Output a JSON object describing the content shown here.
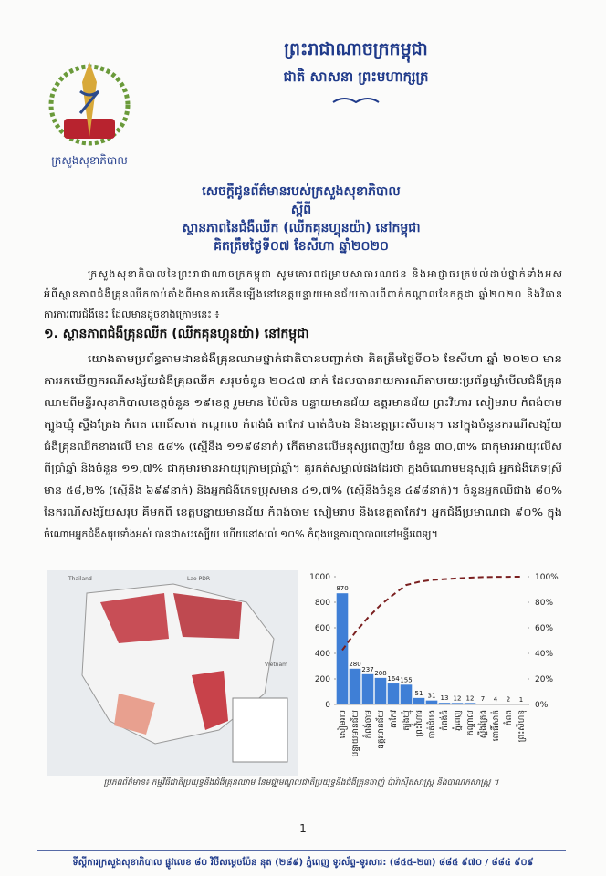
{
  "header": {
    "kingdom": "ព្រះរាជាណាចក្រកម្ពុជា",
    "motto": "ជាតិ សាសនា ព្រះមហាក្សត្រ",
    "ministry": "ក្រសួងសុខាភិបាល"
  },
  "title": {
    "line1": "សេចក្តីជូនព័ត៌មានរបស់ក្រសួងសុខាភិបាល",
    "line2": "ស្តីពី",
    "line3": "ស្ថានភាពនៃជំងឺឈីក (ឈីកគុនហ្គុនយ៉ា) នៅកម្ពុជា",
    "line4": "គិតត្រឹមថ្ងៃទី០៧ ខែសីហា ឆ្នាំ២០២០"
  },
  "intro": [
    "ក្រសួងសុខាភិបាលនៃព្រះរាជាណាចក្រកម្ពុជា សូមគោរពជម្រាបសាធារណជន និងអាជ្ញាធរគ្រប់លំដាប់ថ្នាក់ទាំងអស់",
    "អំពីស្ថានភាពជំងឺគ្រុនឈីកចាប់តាំងពីមានការកើនឡើងនៅខេត្តបន្ទាយមានជ័យកាលពីពាក់កណ្តាលខែកក្កដា ឆ្នាំ២០២០ និងវិធាន",
    "ការការពារជំងឺនេះ ដែលមានដូចខាងក្រោមនេះ ៖"
  ],
  "section": {
    "heading": "១. ស្ថានភាពជំងឺគ្រុនឈីក (ឈីកគុនហ្គុនយ៉ា) នៅកម្ពុជា",
    "lines": [
      "យោងតាមប្រព័ន្ធតាមដានជំងឺគ្រុនឈាមថ្នាក់ជាតិបានបញ្ជាក់ថា គិតត្រឹមថ្ងៃទី០៦ ខែសីហា ឆ្នាំ ២០២០ មាន",
      "ការរកឃើញករណីសង្ស័យជំងឺគ្រុនឈីក សរុបចំនួន ២០៤៧ នាក់ ដែលបានរាយការណ៍តាមរយៈប្រព័ន្ធឃ្លាំមើលជំងឺគ្រុន",
      "ឈាមពីមន្ទីរសុខាភិបាលខេត្តចំនួន ១៩ខេត្ត រួមមាន ប៉ៃលិន បន្ទាយមានជ័យ ឧត្តរមានជ័យ ព្រះវិហារ សៀមរាប កំពង់ចាម",
      "ត្បូងឃ្មុំ ស្ទឹងត្រែង កំពត ពោធិ៍សាត់ កណ្តាល កំពង់ធំ តាកែវ បាត់ដំបង និងខេត្តព្រះសីហនុ។ នៅក្នុងចំនួនករណីសង្ស័យ",
      "ជំងឺគ្រុនឈីកខាងលើ មាន ៥៨% (ស្មើនឹង ១១៩៨នាក់) កើតមានលើមនុស្សពេញវ័យ ចំនួន ៣០,៣% ជាកុមារអាយុលើស",
      "ពីប្រាំឆ្នាំ និងចំនួន ១១,៧% ជាកុមារមានអាយុក្រោមប្រាំឆ្នាំ។ គួរកត់សម្គាល់ផងដែរថា ក្នុងចំណោមមនុស្សធំ អ្នកជំងឺភេទស្រី",
      "មាន ៥៨,២% (ស្មើនឹង ៦៩៩នាក់) និងអ្នកជំងឺភេទប្រុសមាន ៤១,៧% (ស្មើនឹងចំនួន ៤៩៨នាក់)។ ចំនួនអ្នកឈឺជាង ៨០%",
      "នៃករណីសង្ស័យសរុប គឺមកពី ខេត្តបន្ទាយមានជ័យ កំពង់ចាម សៀមរាប និងខេត្តតាកែវ។ អ្នកជំងឺប្រមាណជា ៩០% ក្នុង",
      "ចំណោមអ្នកជំងឺសរុបទាំងអស់ បានជាសះស្បើយ ហើយនៅសល់ ១០% កំពុងបន្តការព្យាបាលនៅមន្ទីរពេទ្យ។"
    ]
  },
  "map": {
    "labels": [
      "Thailand",
      "Lao PDR",
      "Vietnam"
    ]
  },
  "chart_data": {
    "type": "bar",
    "categories": [
      "សៀមរាប",
      "បន្ទាយមានជ័យ",
      "កំពង់ចាម",
      "ឧត្តរមានជ័យ",
      "តាកែវ",
      "ត្បូងឃ្មុំ",
      "ព្រះវិហារ",
      "បាត់ដំបង",
      "កំពង់ធំ",
      "ភ្នំពេញ",
      "កណ្តាល",
      "ស្ទឹងត្រែង",
      "ពោធិ៍សាត់",
      "កំពត",
      "ព្រះសីហនុ"
    ],
    "series": [
      {
        "color": "#3f7fd6",
        "values": [
          870,
          280,
          237,
          208,
          164,
          155,
          51,
          31,
          13,
          12,
          12,
          7,
          4,
          2,
          1
        ]
      },
      {
        "color": "#7a1f1f",
        "axis": "y2",
        "values": [
          42.5,
          56.2,
          67.8,
          77.9,
          85.9,
          93.5,
          96.0,
          97.5,
          98.1,
          98.7,
          99.3,
          99.7,
          99.9,
          99.95,
          100
        ]
      }
    ],
    "ylim": [
      0,
      1000
    ],
    "yticks": [
      0,
      200,
      400,
      600,
      800,
      1000
    ],
    "y2lim": [
      0,
      100
    ],
    "y2ticks": [
      {
        "value": 0,
        "label": "0%"
      },
      {
        "value": 20,
        "label": "20%"
      },
      {
        "value": 40,
        "label": "40%"
      },
      {
        "value": 60,
        "label": "60%"
      },
      {
        "value": 80,
        "label": "80%"
      },
      {
        "value": 100,
        "label": "100%"
      }
    ]
  },
  "caption": "ប្រភពព័ត៌មាន៖ កម្មវិធីជាតិប្រយុទ្ធនឹងជំងឺគ្រុនឈាម នៃមជ្ឈមណ្ឌលជាតិប្រយុទ្ធនឹងជំងឺគ្រុនចាញ់ ប៉ារ៉ាស៊ីតសាស្ត្រ និងបាណកសាស្ត្រ ។",
  "page_number": "1",
  "footer": "ទីស្តីការក្រសួងសុខាភិបាល ផ្លូវលេខ ៨០ វិថីសម្តេចប៉ែន នុត (២៨៩) ភ្នំពេញ ទូរស័ព្ទ-ទូរសារ: (៨៥៥-២៣) ៨៨៥ ៩៧០ / ៨៨៤ ៩០៩"
}
